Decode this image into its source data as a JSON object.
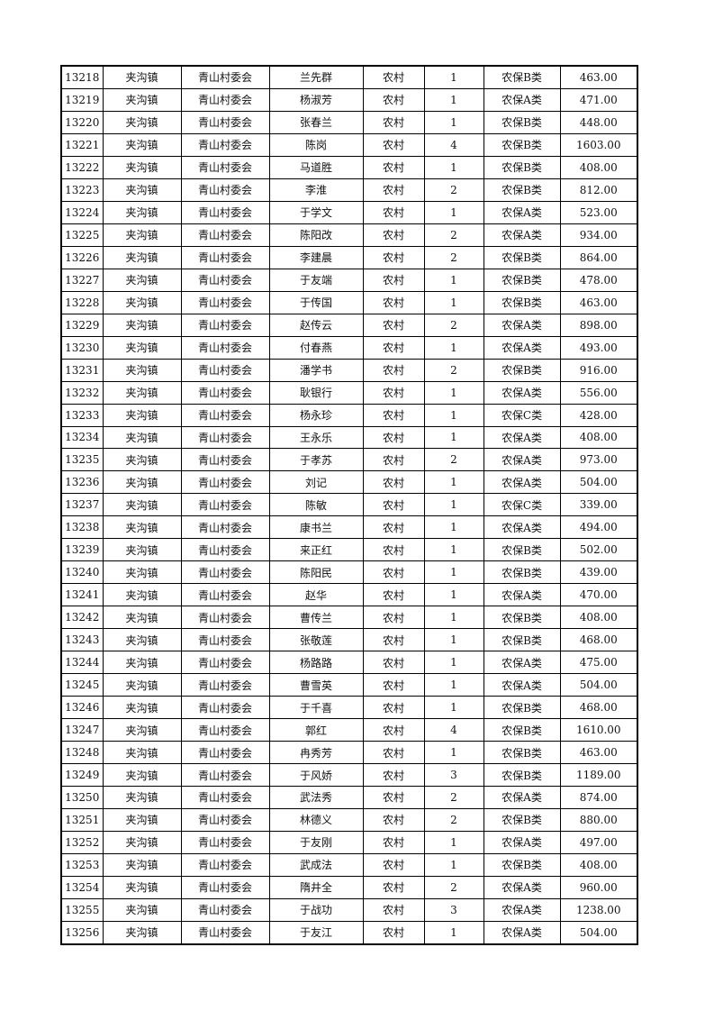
{
  "table": {
    "rows": [
      [
        "13218",
        "夹沟镇",
        "青山村委会",
        "兰先群",
        "农村",
        "1",
        "农保B类",
        "463.00"
      ],
      [
        "13219",
        "夹沟镇",
        "青山村委会",
        "杨淑芳",
        "农村",
        "1",
        "农保A类",
        "471.00"
      ],
      [
        "13220",
        "夹沟镇",
        "青山村委会",
        "张春兰",
        "农村",
        "1",
        "农保B类",
        "448.00"
      ],
      [
        "13221",
        "夹沟镇",
        "青山村委会",
        "陈岗",
        "农村",
        "4",
        "农保B类",
        "1603.00"
      ],
      [
        "13222",
        "夹沟镇",
        "青山村委会",
        "马道胜",
        "农村",
        "1",
        "农保B类",
        "408.00"
      ],
      [
        "13223",
        "夹沟镇",
        "青山村委会",
        "李淮",
        "农村",
        "2",
        "农保B类",
        "812.00"
      ],
      [
        "13224",
        "夹沟镇",
        "青山村委会",
        "于学文",
        "农村",
        "1",
        "农保A类",
        "523.00"
      ],
      [
        "13225",
        "夹沟镇",
        "青山村委会",
        "陈阳改",
        "农村",
        "2",
        "农保A类",
        "934.00"
      ],
      [
        "13226",
        "夹沟镇",
        "青山村委会",
        "李建晨",
        "农村",
        "2",
        "农保B类",
        "864.00"
      ],
      [
        "13227",
        "夹沟镇",
        "青山村委会",
        "于友端",
        "农村",
        "1",
        "农保B类",
        "478.00"
      ],
      [
        "13228",
        "夹沟镇",
        "青山村委会",
        "于传国",
        "农村",
        "1",
        "农保B类",
        "463.00"
      ],
      [
        "13229",
        "夹沟镇",
        "青山村委会",
        "赵传云",
        "农村",
        "2",
        "农保A类",
        "898.00"
      ],
      [
        "13230",
        "夹沟镇",
        "青山村委会",
        "付春燕",
        "农村",
        "1",
        "农保A类",
        "493.00"
      ],
      [
        "13231",
        "夹沟镇",
        "青山村委会",
        "潘学书",
        "农村",
        "2",
        "农保B类",
        "916.00"
      ],
      [
        "13232",
        "夹沟镇",
        "青山村委会",
        "耿银行",
        "农村",
        "1",
        "农保A类",
        "556.00"
      ],
      [
        "13233",
        "夹沟镇",
        "青山村委会",
        "杨永珍",
        "农村",
        "1",
        "农保C类",
        "428.00"
      ],
      [
        "13234",
        "夹沟镇",
        "青山村委会",
        "王永乐",
        "农村",
        "1",
        "农保A类",
        "408.00"
      ],
      [
        "13235",
        "夹沟镇",
        "青山村委会",
        "于孝苏",
        "农村",
        "2",
        "农保A类",
        "973.00"
      ],
      [
        "13236",
        "夹沟镇",
        "青山村委会",
        "刘记",
        "农村",
        "1",
        "农保A类",
        "504.00"
      ],
      [
        "13237",
        "夹沟镇",
        "青山村委会",
        "陈敏",
        "农村",
        "1",
        "农保C类",
        "339.00"
      ],
      [
        "13238",
        "夹沟镇",
        "青山村委会",
        "康书兰",
        "农村",
        "1",
        "农保A类",
        "494.00"
      ],
      [
        "13239",
        "夹沟镇",
        "青山村委会",
        "来正红",
        "农村",
        "1",
        "农保B类",
        "502.00"
      ],
      [
        "13240",
        "夹沟镇",
        "青山村委会",
        "陈阳民",
        "农村",
        "1",
        "农保B类",
        "439.00"
      ],
      [
        "13241",
        "夹沟镇",
        "青山村委会",
        "赵华",
        "农村",
        "1",
        "农保A类",
        "470.00"
      ],
      [
        "13242",
        "夹沟镇",
        "青山村委会",
        "曹传兰",
        "农村",
        "1",
        "农保B类",
        "408.00"
      ],
      [
        "13243",
        "夹沟镇",
        "青山村委会",
        "张敬莲",
        "农村",
        "1",
        "农保B类",
        "468.00"
      ],
      [
        "13244",
        "夹沟镇",
        "青山村委会",
        "杨路路",
        "农村",
        "1",
        "农保A类",
        "475.00"
      ],
      [
        "13245",
        "夹沟镇",
        "青山村委会",
        "曹雪英",
        "农村",
        "1",
        "农保A类",
        "504.00"
      ],
      [
        "13246",
        "夹沟镇",
        "青山村委会",
        "于千喜",
        "农村",
        "1",
        "农保B类",
        "468.00"
      ],
      [
        "13247",
        "夹沟镇",
        "青山村委会",
        "郭红",
        "农村",
        "4",
        "农保B类",
        "1610.00"
      ],
      [
        "13248",
        "夹沟镇",
        "青山村委会",
        "冉秀芳",
        "农村",
        "1",
        "农保B类",
        "463.00"
      ],
      [
        "13249",
        "夹沟镇",
        "青山村委会",
        "于风娇",
        "农村",
        "3",
        "农保B类",
        "1189.00"
      ],
      [
        "13250",
        "夹沟镇",
        "青山村委会",
        "武法秀",
        "农村",
        "2",
        "农保A类",
        "874.00"
      ],
      [
        "13251",
        "夹沟镇",
        "青山村委会",
        "林德义",
        "农村",
        "2",
        "农保B类",
        "880.00"
      ],
      [
        "13252",
        "夹沟镇",
        "青山村委会",
        "于友刚",
        "农村",
        "1",
        "农保A类",
        "497.00"
      ],
      [
        "13253",
        "夹沟镇",
        "青山村委会",
        "武成法",
        "农村",
        "1",
        "农保B类",
        "408.00"
      ],
      [
        "13254",
        "夹沟镇",
        "青山村委会",
        "隋井全",
        "农村",
        "2",
        "农保A类",
        "960.00"
      ],
      [
        "13255",
        "夹沟镇",
        "青山村委会",
        "于战功",
        "农村",
        "3",
        "农保A类",
        "1238.00"
      ],
      [
        "13256",
        "夹沟镇",
        "青山村委会",
        "于友江",
        "农村",
        "1",
        "农保A类",
        "504.00"
      ]
    ]
  }
}
